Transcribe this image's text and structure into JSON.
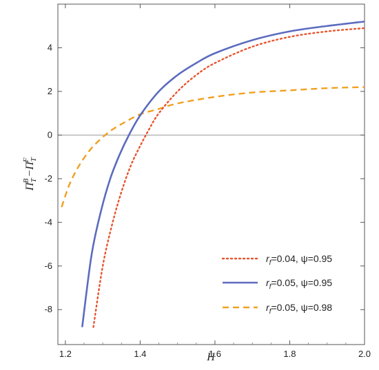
{
  "chart_data": {
    "type": "line",
    "xlabel": "H",
    "ylabel": "Π_T^B − Π_T^F",
    "xlim": [
      1.18,
      2.0
    ],
    "ylim": [
      -9.6,
      6.0
    ],
    "x_ticks": [
      1.2,
      1.4,
      1.6,
      1.8,
      2.0
    ],
    "y_ticks": [
      -8,
      -6,
      -4,
      -2,
      0,
      2,
      4
    ],
    "x_tick_labels": [
      "1.2",
      "1.4",
      "1.6",
      "1.8",
      "2.0"
    ],
    "y_tick_labels": [
      "-8",
      "-6",
      "-4",
      "-2",
      "0",
      "2",
      "4"
    ],
    "grid": false,
    "legend_position": "bottom-right",
    "series": [
      {
        "name": "r_f=0.04, ψ=0.95",
        "legend_main": "r",
        "legend_sub": "f",
        "legend_rest": "=0.04, ψ=0.95",
        "color": "#E8542F",
        "style": "dotted",
        "x": [
          1.275,
          1.3,
          1.325,
          1.35,
          1.375,
          1.4,
          1.425,
          1.45,
          1.5,
          1.55,
          1.6,
          1.7,
          1.8,
          1.9,
          2.0
        ],
        "y": [
          -8.8,
          -6.0,
          -4.1,
          -2.6,
          -1.4,
          -0.5,
          0.3,
          1.0,
          2.0,
          2.75,
          3.3,
          4.05,
          4.5,
          4.75,
          4.9
        ]
      },
      {
        "name": "r_f=0.05, ψ=0.95",
        "legend_main": "r",
        "legend_sub": "f",
        "legend_rest": "=0.05, ψ=0.95",
        "color": "#5B6BBF",
        "style": "solid",
        "x": [
          1.245,
          1.27,
          1.295,
          1.32,
          1.345,
          1.37,
          1.4,
          1.45,
          1.5,
          1.55,
          1.6,
          1.7,
          1.8,
          1.9,
          2.0
        ],
        "y": [
          -8.8,
          -5.5,
          -3.5,
          -2.0,
          -0.9,
          0.0,
          0.9,
          2.0,
          2.75,
          3.3,
          3.75,
          4.35,
          4.75,
          5.0,
          5.2
        ]
      },
      {
        "name": "r_f=0.05, ψ=0.98",
        "legend_main": "r",
        "legend_sub": "f",
        "legend_rest": "=0.05, ψ=0.98",
        "color": "#F0A01E",
        "style": "dashed",
        "x": [
          1.19,
          1.21,
          1.23,
          1.25,
          1.27,
          1.29,
          1.31,
          1.33,
          1.36,
          1.4,
          1.45,
          1.5,
          1.6,
          1.7,
          1.8,
          1.9,
          2.0
        ],
        "y": [
          -3.3,
          -2.3,
          -1.6,
          -1.05,
          -0.6,
          -0.25,
          0.05,
          0.3,
          0.6,
          0.95,
          1.2,
          1.45,
          1.75,
          1.95,
          2.05,
          2.15,
          2.2
        ]
      }
    ]
  }
}
